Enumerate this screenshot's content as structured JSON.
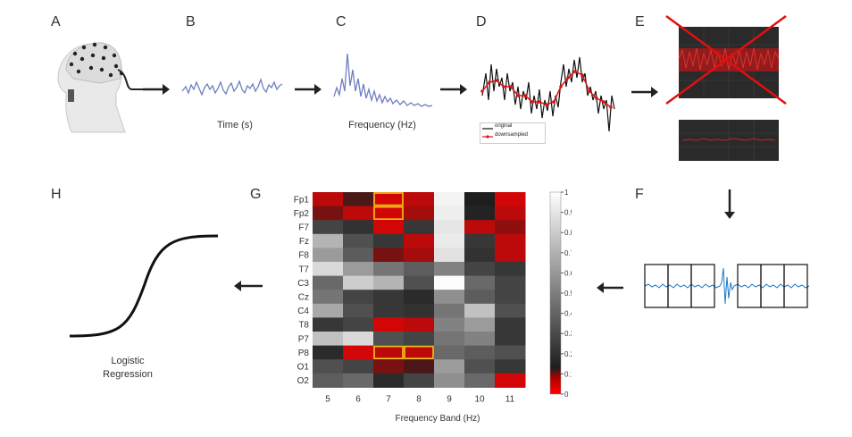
{
  "panels": {
    "a": {
      "letter": "A"
    },
    "b": {
      "letter": "B",
      "caption": "Time (s)"
    },
    "c": {
      "letter": "C",
      "caption": "Frequency (Hz)"
    },
    "d": {
      "letter": "D",
      "legend_original": "original",
      "legend_downsampled": "downsampled"
    },
    "e": {
      "letter": "E"
    },
    "f": {
      "letter": "F"
    },
    "g": {
      "letter": "G"
    },
    "h": {
      "letter": "H",
      "caption_line1": "Logistic",
      "caption_line2": "Regression"
    }
  },
  "colors": {
    "signal_blue": "#6f7fc0",
    "red": "#e01010",
    "eeg_blue": "#1f77c4",
    "dark_panel": "#2a2a2a"
  },
  "chart_data": {
    "type": "heatmap",
    "xlabel": "Frequency Band (Hz)",
    "ylabel": "",
    "x_categories": [
      "5",
      "6",
      "7",
      "8",
      "9",
      "10",
      "11"
    ],
    "y_categories": [
      "Fp1",
      "Fp2",
      "F7",
      "Fz",
      "F8",
      "T7",
      "C3",
      "Cz",
      "C4",
      "T8",
      "P7",
      "P8",
      "O1",
      "O2"
    ],
    "colorbar_ticks": [
      "1",
      "0.9",
      "0.8",
      "0.7",
      "0.6",
      "0.5",
      "0.4",
      "0.3",
      "0.2",
      "0.1",
      "0"
    ],
    "colorbar_range": [
      0,
      1
    ],
    "values": [
      [
        0.03,
        0.08,
        0.02,
        0.03,
        0.95,
        0.1,
        0.02
      ],
      [
        0.06,
        0.03,
        0.02,
        0.04,
        0.93,
        0.12,
        0.03
      ],
      [
        0.25,
        0.18,
        0.02,
        0.2,
        0.9,
        0.03,
        0.05
      ],
      [
        0.7,
        0.3,
        0.2,
        0.03,
        0.92,
        0.2,
        0.03
      ],
      [
        0.6,
        0.35,
        0.06,
        0.04,
        0.88,
        0.18,
        0.03
      ],
      [
        0.85,
        0.6,
        0.45,
        0.35,
        0.5,
        0.25,
        0.2
      ],
      [
        0.4,
        0.8,
        0.7,
        0.3,
        0.99,
        0.4,
        0.25
      ],
      [
        0.45,
        0.25,
        0.2,
        0.15,
        0.55,
        0.35,
        0.25
      ],
      [
        0.65,
        0.3,
        0.2,
        0.18,
        0.45,
        0.75,
        0.3
      ],
      [
        0.2,
        0.25,
        0.02,
        0.03,
        0.5,
        0.6,
        0.2
      ],
      [
        0.75,
        0.85,
        0.3,
        0.25,
        0.45,
        0.5,
        0.2
      ],
      [
        0.15,
        0.02,
        0.03,
        0.03,
        0.4,
        0.35,
        0.3
      ],
      [
        0.3,
        0.25,
        0.06,
        0.08,
        0.6,
        0.3,
        0.2
      ],
      [
        0.35,
        0.4,
        0.15,
        0.25,
        0.55,
        0.4,
        0.02
      ]
    ],
    "highlighted_cells": [
      {
        "row": "Fp1",
        "col": "7"
      },
      {
        "row": "Fp2",
        "col": "7"
      },
      {
        "row": "P8",
        "col": "7"
      },
      {
        "row": "P8",
        "col": "8"
      }
    ]
  }
}
